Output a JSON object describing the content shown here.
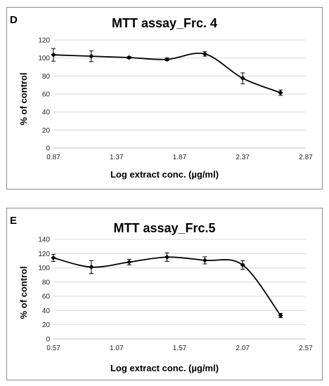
{
  "chart_data": [
    {
      "type": "line",
      "panel_label": "D",
      "title": "MTT assay_Frc. 4",
      "xlabel": "Log extract conc. (µg/ml)",
      "ylabel": "% of control",
      "xlim": [
        0.87,
        2.87
      ],
      "ylim": [
        0,
        120
      ],
      "xticks": [
        "0.87",
        "1.37",
        "1.87",
        "2.37",
        "2.87"
      ],
      "yticks": [
        "0",
        "20",
        "40",
        "60",
        "80",
        "100",
        "120"
      ],
      "grid": "horizontal",
      "series": [
        {
          "x": [
            0.87,
            1.17,
            1.47,
            1.77,
            2.07,
            2.37,
            2.67
          ],
          "y": [
            103.5,
            102,
            100.5,
            98.5,
            104.5,
            77.5,
            61.5
          ],
          "err": [
            7,
            6,
            1,
            1.5,
            2.5,
            6,
            3
          ]
        }
      ]
    },
    {
      "type": "line",
      "panel_label": "E",
      "title": "MTT assay_Frc.5",
      "xlabel": "Log extract conc. (µg/ml)",
      "ylabel": "% of control",
      "xlim": [
        0.57,
        2.57
      ],
      "ylim": [
        0,
        140
      ],
      "xticks": [
        "0.57",
        "1.07",
        "1.57",
        "2.07",
        "2.57"
      ],
      "yticks": [
        "0",
        "20",
        "40",
        "60",
        "80",
        "100",
        "120",
        "140"
      ],
      "grid": "horizontal",
      "series": [
        {
          "x": [
            0.57,
            0.87,
            1.17,
            1.47,
            1.77,
            2.07,
            2.37
          ],
          "y": [
            114,
            101,
            108,
            115,
            110.5,
            104,
            33
          ],
          "err": [
            5,
            9,
            4,
            6,
            5,
            6,
            3
          ]
        }
      ]
    }
  ]
}
